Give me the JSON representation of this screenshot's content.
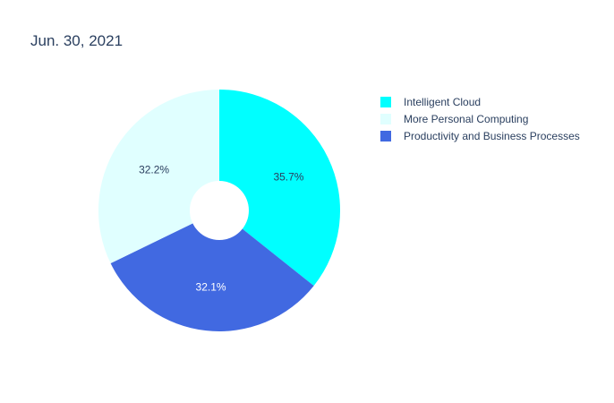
{
  "chart_data": {
    "type": "pie",
    "title": "Jun. 30, 2021",
    "hole": true,
    "slices": [
      {
        "label": "Intelligent Cloud",
        "percent": 35.7,
        "text": "35.7%",
        "color": "#00ffff",
        "text_color": "#2a3f5f"
      },
      {
        "label": "Productivity and Business Processes",
        "percent": 32.1,
        "text": "32.1%",
        "color": "#4169e1",
        "text_color": "#ffffff"
      },
      {
        "label": "More Personal Computing",
        "percent": 32.2,
        "text": "32.2%",
        "color": "#e0ffff",
        "text_color": "#2a3f5f"
      }
    ],
    "legend": {
      "placement": "right",
      "entries": [
        "Intelligent Cloud",
        "More Personal Computing",
        "Productivity and Business Processes"
      ]
    }
  }
}
